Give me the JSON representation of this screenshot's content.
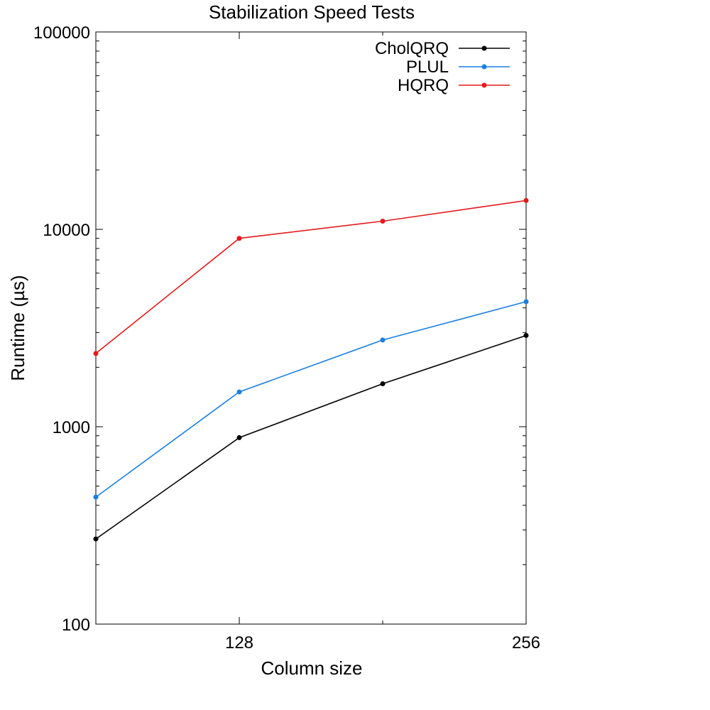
{
  "chart_data": {
    "type": "line",
    "title": "Stabilization Speed Tests",
    "xlabel": "Column size",
    "ylabel": "Runtime (µs)",
    "xscale": "linear",
    "yscale": "log",
    "xlim": [
      64,
      256
    ],
    "ylim": [
      100,
      100000
    ],
    "x": [
      64,
      128,
      192,
      256
    ],
    "xticks": [
      128,
      256
    ],
    "xtick_labels": [
      "128",
      "256"
    ],
    "yticks": [
      100,
      1000,
      10000,
      100000
    ],
    "ytick_labels": [
      "100",
      "1000",
      "10000",
      "100000"
    ],
    "grid": false,
    "legend": "top-right",
    "series": [
      {
        "name": "CholQRQ",
        "color": "#000000",
        "values": [
          270,
          880,
          1650,
          2900
        ]
      },
      {
        "name": "PLUL",
        "color": "#1a7fe0",
        "values": [
          440,
          1500,
          2750,
          4300
        ]
      },
      {
        "name": "HQRQ",
        "color": "#e41a1c",
        "values": [
          2350,
          9000,
          11000,
          14000
        ]
      }
    ]
  }
}
